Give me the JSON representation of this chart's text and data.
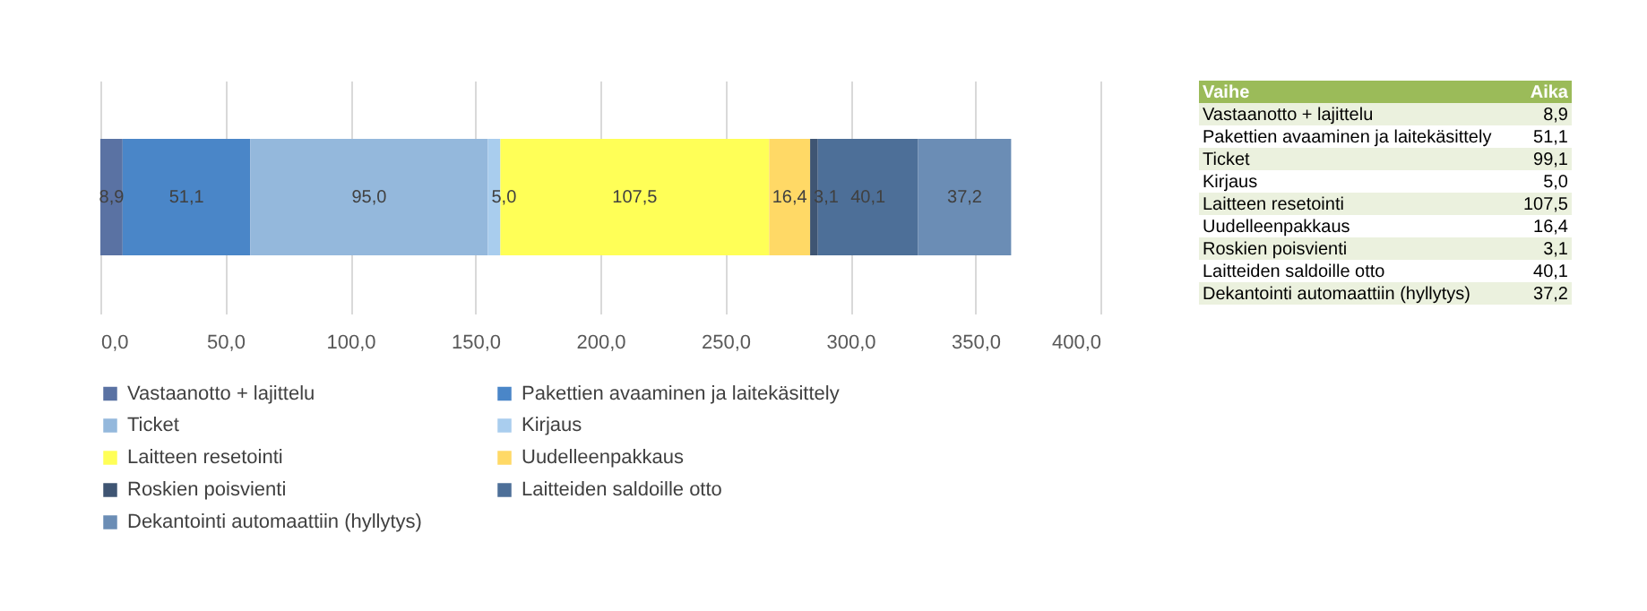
{
  "chart_data": [
    {
      "type": "bar",
      "orientation": "horizontal",
      "stacked": true,
      "categories": [
        null
      ],
      "series": [
        {
          "name": "Vastaanotto + lajittelu",
          "color": "#5a72a3",
          "values": [
            8.9
          ],
          "value_labels": [
            "8,9"
          ]
        },
        {
          "name": "Pakettien avaaminen ja laitekäsittely",
          "color": "#4a86c8",
          "values": [
            51.1
          ],
          "value_labels": [
            "51,1"
          ]
        },
        {
          "name": "Ticket",
          "color": "#94b8dc",
          "values": [
            95.0
          ],
          "value_labels": [
            "95,0"
          ]
        },
        {
          "name": "Kirjaus",
          "color": "#a9cdee",
          "values": [
            5.0
          ],
          "value_labels": [
            "5,0"
          ]
        },
        {
          "name": "Laitteen resetointi",
          "color": "#ffff57",
          "values": [
            107.5
          ],
          "value_labels": [
            "107,5"
          ]
        },
        {
          "name": "Uudelleenpakkaus",
          "color": "#ffd966",
          "values": [
            16.4
          ],
          "value_labels": [
            "16,4"
          ]
        },
        {
          "name": "Roskien poisvienti",
          "color": "#3f5573",
          "values": [
            3.1
          ],
          "value_labels": [
            "3,1"
          ]
        },
        {
          "name": "Laitteiden saldoille otto",
          "color": "#4d6f98",
          "values": [
            40.1
          ],
          "value_labels": [
            "40,1"
          ]
        },
        {
          "name": "Dekantointi automaattiin (hyllytys)",
          "color": "#6b8db5",
          "values": [
            37.2
          ],
          "value_labels": [
            "37,2"
          ]
        }
      ],
      "xlim": [
        0,
        400
      ],
      "xticks": [
        {
          "value": 0,
          "label": "0,0"
        },
        {
          "value": 50,
          "label": "50,0"
        },
        {
          "value": 100,
          "label": "100,0"
        },
        {
          "value": 150,
          "label": "150,0"
        },
        {
          "value": 200,
          "label": "200,0"
        },
        {
          "value": 250,
          "label": "250,0"
        },
        {
          "value": 300,
          "label": "300,0"
        },
        {
          "value": 350,
          "label": "350,0"
        },
        {
          "value": 400,
          "label": "400,0"
        }
      ],
      "grid": "x",
      "legend": "bottom",
      "tick_labels": "x"
    },
    {
      "type": "other",
      "annotations": [
        "Vaihe",
        "Aika",
        "Vastaanotto + lajittelu",
        "8,9",
        "Pakettien avaaminen ja laitekäsittely",
        "51,1",
        "Ticket",
        "99,1",
        "Kirjaus",
        "5,0",
        "Laitteen resetointi",
        "107,5",
        "Uudelleenpakkaus",
        "16,4",
        "Roskien poisvienti",
        "3,1",
        "Laitteiden saldoille otto",
        "40,1",
        "Dekantointi automaattiin (hyllytys)",
        "37,2"
      ]
    }
  ]
}
